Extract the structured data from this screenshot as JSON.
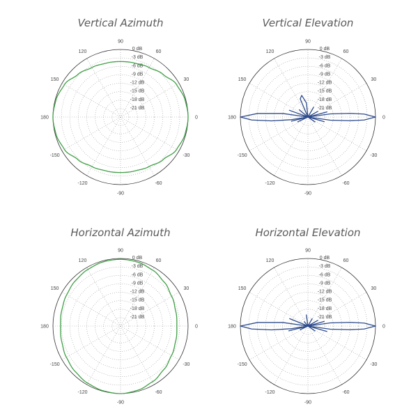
{
  "chart_data": [
    {
      "type": "polar",
      "title": "Vertical Azimuth",
      "color": "#3f9f45",
      "smooth": true,
      "rlim_db": [
        -24,
        0
      ],
      "radial_ticks": [
        "0 dB",
        "-3 dB",
        "-6 dB",
        "-9 dB",
        "-12 dB",
        "-15 dB",
        "-18 dB",
        "-21 dB"
      ],
      "angle_ticks": [
        "0",
        "30",
        "60",
        "90",
        "120",
        "150",
        "180",
        "-150",
        "-120",
        "-90",
        "-60",
        "-30"
      ],
      "points": [
        [
          -180,
          0
        ],
        [
          -165,
          -0.3
        ],
        [
          -150,
          -1
        ],
        [
          -135,
          -2.6
        ],
        [
          -120,
          -3.7
        ],
        [
          -105,
          -4.2
        ],
        [
          -90,
          -4.3
        ],
        [
          -75,
          -4.2
        ],
        [
          -60,
          -3.7
        ],
        [
          -45,
          -2.6
        ],
        [
          -30,
          -1
        ],
        [
          -15,
          -0.3
        ],
        [
          0,
          0
        ],
        [
          15,
          -0.3
        ],
        [
          30,
          -1
        ],
        [
          45,
          -2.6
        ],
        [
          60,
          -3.7
        ],
        [
          75,
          -4.2
        ],
        [
          90,
          -4.3
        ],
        [
          105,
          -4.2
        ],
        [
          120,
          -3.7
        ],
        [
          135,
          -2.6
        ],
        [
          150,
          -1
        ],
        [
          165,
          -0.3
        ],
        [
          180,
          0
        ]
      ]
    },
    {
      "type": "polar",
      "title": "Vertical Elevation",
      "color": "#2d4b8c",
      "smooth": false,
      "rlim_db": [
        -24,
        0
      ],
      "radial_ticks": [
        "0 dB",
        "-3 dB",
        "-6 dB",
        "-9 dB",
        "-12 dB",
        "-15 dB",
        "-18 dB",
        "-21 dB"
      ],
      "angle_ticks": [
        "0",
        "30",
        "60",
        "90",
        "120",
        "150",
        "180",
        "-150",
        "-120",
        "-90",
        "-60",
        "-30"
      ],
      "points": [
        [
          -180,
          0
        ],
        [
          -177,
          -4
        ],
        [
          -174,
          -11
        ],
        [
          -171,
          -18
        ],
        [
          -169,
          -24
        ],
        [
          -166,
          -18
        ],
        [
          -163,
          -24
        ],
        [
          -155,
          -20
        ],
        [
          -148,
          -24
        ],
        [
          -120,
          -24
        ],
        [
          -90,
          -24
        ],
        [
          -60,
          -24
        ],
        [
          -35,
          -21
        ],
        [
          -25,
          -24
        ],
        [
          -16,
          -18
        ],
        [
          -11,
          -24
        ],
        [
          -8,
          -16
        ],
        [
          -5,
          -9
        ],
        [
          -3,
          -4
        ],
        [
          0,
          0
        ],
        [
          3,
          -4
        ],
        [
          5,
          -9
        ],
        [
          8,
          -16
        ],
        [
          11,
          -24
        ],
        [
          15,
          -17
        ],
        [
          20,
          -24
        ],
        [
          30,
          -20
        ],
        [
          40,
          -24
        ],
        [
          60,
          -20
        ],
        [
          80,
          -24
        ],
        [
          96,
          -19
        ],
        [
          106,
          -16
        ],
        [
          113,
          -17
        ],
        [
          120,
          -24
        ],
        [
          140,
          -20
        ],
        [
          150,
          -24
        ],
        [
          160,
          -17
        ],
        [
          166,
          -24
        ],
        [
          172,
          -15
        ],
        [
          176,
          -6
        ],
        [
          180,
          0
        ]
      ]
    },
    {
      "type": "polar",
      "title": "Horizontal Azimuth",
      "color": "#3f9f45",
      "smooth": true,
      "rlim_db": [
        -24,
        0
      ],
      "radial_ticks": [
        "0 dB",
        "-3 dB",
        "-6 dB",
        "-9 dB",
        "-12 dB",
        "-15 dB",
        "-18 dB",
        "-21 dB"
      ],
      "angle_ticks": [
        "0",
        "30",
        "60",
        "90",
        "120",
        "150",
        "180",
        "-150",
        "-120",
        "-90",
        "-60",
        "-30"
      ],
      "points": [
        [
          -180,
          -2.7
        ],
        [
          -165,
          -2.4
        ],
        [
          -150,
          -1.8
        ],
        [
          -135,
          -1.2
        ],
        [
          -120,
          -0.6
        ],
        [
          -105,
          -0.2
        ],
        [
          -90,
          0
        ],
        [
          -75,
          -0.4
        ],
        [
          -60,
          -1.2
        ],
        [
          -45,
          -2.2
        ],
        [
          -30,
          -3.1
        ],
        [
          -15,
          -3.7
        ],
        [
          0,
          -4
        ],
        [
          15,
          -3.7
        ],
        [
          30,
          -3
        ],
        [
          45,
          -2
        ],
        [
          60,
          -1.1
        ],
        [
          75,
          -0.5
        ],
        [
          90,
          -0.3
        ],
        [
          105,
          -0.4
        ],
        [
          120,
          -0.8
        ],
        [
          135,
          -1.3
        ],
        [
          150,
          -1.9
        ],
        [
          165,
          -2.4
        ],
        [
          180,
          -2.7
        ]
      ]
    },
    {
      "type": "polar",
      "title": "Horizontal Elevation",
      "color": "#2d4b8c",
      "smooth": false,
      "rlim_db": [
        -24,
        0
      ],
      "radial_ticks": [
        "0 dB",
        "-3 dB",
        "-6 dB",
        "-9 dB",
        "-12 dB",
        "-15 dB",
        "-18 dB",
        "-21 dB"
      ],
      "angle_ticks": [
        "0",
        "30",
        "60",
        "90",
        "120",
        "150",
        "180",
        "-150",
        "-120",
        "-90",
        "-60",
        "-30"
      ],
      "points": [
        [
          -180,
          0
        ],
        [
          -177,
          -4
        ],
        [
          -174,
          -11
        ],
        [
          -171,
          -18
        ],
        [
          -169,
          -24
        ],
        [
          -166,
          -17
        ],
        [
          -163,
          -24
        ],
        [
          -155,
          -21
        ],
        [
          -148,
          -24
        ],
        [
          -120,
          -24
        ],
        [
          -90,
          -24
        ],
        [
          -60,
          -24
        ],
        [
          -35,
          -21
        ],
        [
          -25,
          -24
        ],
        [
          -16,
          -17
        ],
        [
          -11,
          -24
        ],
        [
          -8,
          -16
        ],
        [
          -5,
          -9
        ],
        [
          -3,
          -4
        ],
        [
          0,
          0
        ],
        [
          3,
          -4
        ],
        [
          5,
          -9
        ],
        [
          8,
          -16
        ],
        [
          11,
          -24
        ],
        [
          16,
          -18
        ],
        [
          22,
          -24
        ],
        [
          30,
          -20
        ],
        [
          40,
          -24
        ],
        [
          60,
          -21
        ],
        [
          75,
          -24
        ],
        [
          98,
          -20
        ],
        [
          104,
          -24
        ],
        [
          130,
          -22
        ],
        [
          150,
          -24
        ],
        [
          158,
          -17
        ],
        [
          165,
          -24
        ],
        [
          172,
          -15
        ],
        [
          176,
          -6
        ],
        [
          180,
          0
        ]
      ]
    }
  ]
}
